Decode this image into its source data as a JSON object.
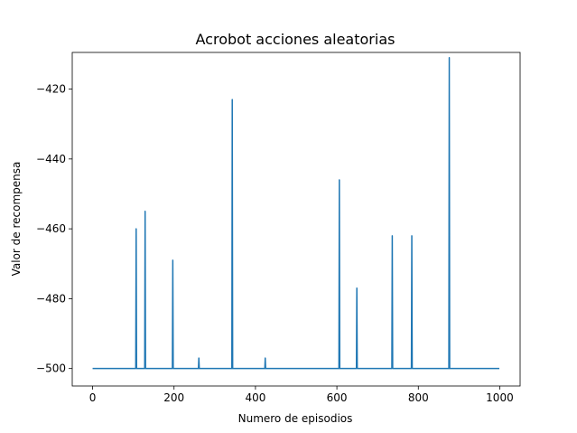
{
  "chart_data": {
    "type": "line",
    "title": "Acrobot acciones aleatorias",
    "xlabel": "Numero de episodios",
    "ylabel": "Valor de recompensa",
    "xlim": [
      -50,
      1050
    ],
    "ylim": [
      -505,
      -409.5
    ],
    "xticks": [
      0,
      200,
      400,
      600,
      800,
      1000
    ],
    "yticks": [
      -500,
      -480,
      -460,
      -440,
      -420
    ],
    "ytick_labels": [
      "−500",
      "−480",
      "−460",
      "−440",
      "−420"
    ],
    "grid": false,
    "line_color": "#1f77b4",
    "baseline": -500,
    "n_points": 1000,
    "series": [
      {
        "spikes": [
          {
            "x": 107,
            "y": -460
          },
          {
            "x": 129,
            "y": -455
          },
          {
            "x": 197,
            "y": -469
          },
          {
            "x": 261,
            "y": -497
          },
          {
            "x": 343,
            "y": -423
          },
          {
            "x": 424,
            "y": -497
          },
          {
            "x": 606,
            "y": -446
          },
          {
            "x": 649,
            "y": -477
          },
          {
            "x": 736,
            "y": -462
          },
          {
            "x": 784,
            "y": -462
          },
          {
            "x": 876,
            "y": -411
          }
        ]
      }
    ]
  }
}
